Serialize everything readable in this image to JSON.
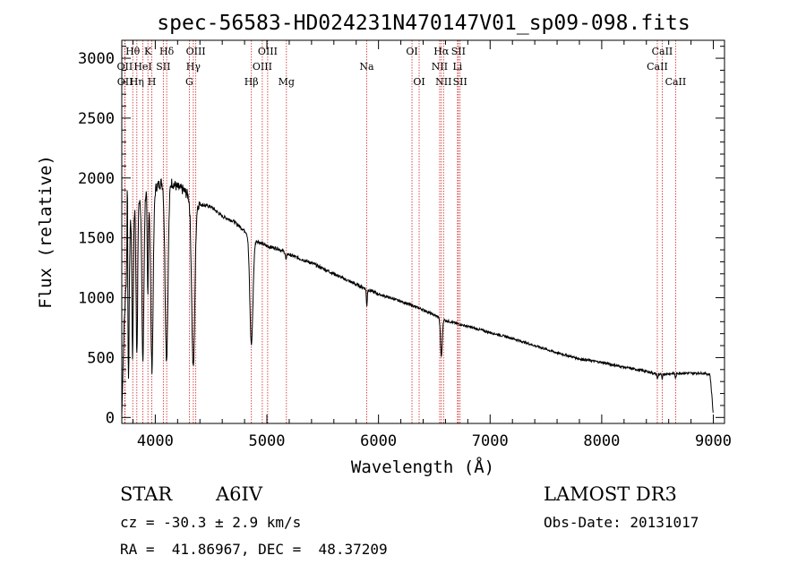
{
  "colors": {
    "spectrum": "#000000",
    "line_marker": "#cc2222",
    "axis": "#000000"
  },
  "chart_data": {
    "type": "line",
    "title": "spec-56583-HD024231N470147V01_sp09-098.fits",
    "xlabel": "Wavelength (Å)",
    "ylabel": "Flux (relative)",
    "xlim": [
      3700,
      9100
    ],
    "ylim": [
      -50,
      3150
    ],
    "xticks": [
      4000,
      5000,
      6000,
      7000,
      8000,
      9000
    ],
    "yticks": [
      0,
      500,
      1000,
      1500,
      2000,
      2500,
      3000
    ],
    "x_minor_step": 200,
    "y_minor_step": 100,
    "series": [
      {
        "name": "spectrum",
        "continuum": [
          [
            3700,
            20
          ],
          [
            3720,
            750
          ],
          [
            3750,
            1350
          ],
          [
            3780,
            1650
          ],
          [
            3830,
            1800
          ],
          [
            3900,
            1880
          ],
          [
            3950,
            1900
          ],
          [
            4000,
            1920
          ],
          [
            4050,
            1960
          ],
          [
            4100,
            1990
          ],
          [
            4150,
            1960
          ],
          [
            4200,
            1920
          ],
          [
            4250,
            1900
          ],
          [
            4300,
            1850
          ],
          [
            4350,
            1800
          ],
          [
            4400,
            1780
          ],
          [
            4500,
            1760
          ],
          [
            4600,
            1680
          ],
          [
            4700,
            1640
          ],
          [
            4800,
            1560
          ],
          [
            4900,
            1480
          ],
          [
            5000,
            1430
          ],
          [
            5100,
            1410
          ],
          [
            5200,
            1360
          ],
          [
            5400,
            1290
          ],
          [
            5600,
            1200
          ],
          [
            5800,
            1110
          ],
          [
            6000,
            1030
          ],
          [
            6200,
            970
          ],
          [
            6400,
            900
          ],
          [
            6600,
            810
          ],
          [
            6800,
            760
          ],
          [
            7000,
            710
          ],
          [
            7200,
            660
          ],
          [
            7400,
            600
          ],
          [
            7600,
            540
          ],
          [
            7800,
            490
          ],
          [
            8000,
            460
          ],
          [
            8200,
            420
          ],
          [
            8400,
            385
          ],
          [
            8500,
            360
          ],
          [
            8700,
            370
          ],
          [
            8900,
            370
          ],
          [
            8970,
            360
          ],
          [
            8990,
            150
          ],
          [
            9000,
            0
          ]
        ],
        "absorption_lines": [
          {
            "center": 3760,
            "depth": 1100,
            "width": 6
          },
          {
            "center": 3797,
            "depth": 1200,
            "width": 6
          },
          {
            "center": 3835,
            "depth": 1300,
            "width": 7
          },
          {
            "center": 3889,
            "depth": 1400,
            "width": 9
          },
          {
            "center": 3933,
            "depth": 900,
            "width": 5
          },
          {
            "center": 3970,
            "depth": 1500,
            "width": 11
          },
          {
            "center": 4101,
            "depth": 1500,
            "width": 13
          },
          {
            "center": 4340,
            "depth": 1400,
            "width": 14
          },
          {
            "center": 4861,
            "depth": 900,
            "width": 14
          },
          {
            "center": 5172,
            "depth": 60,
            "width": 5
          },
          {
            "center": 5895,
            "depth": 140,
            "width": 4
          },
          {
            "center": 6563,
            "depth": 320,
            "width": 8
          },
          {
            "center": 8500,
            "depth": 40,
            "width": 4
          },
          {
            "center": 8542,
            "depth": 50,
            "width": 4
          },
          {
            "center": 8662,
            "depth": 45,
            "width": 4
          }
        ],
        "emission_features": [
          {
            "center": 3750,
            "height": 900,
            "width": 3
          }
        ]
      }
    ],
    "spectral_lines": [
      {
        "label": "Hθ",
        "wavelength": 3798,
        "row": 0
      },
      {
        "label": "OII",
        "wavelength": 3727,
        "row": 1
      },
      {
        "label": "OII",
        "wavelength": 3729,
        "row": 2
      },
      {
        "label": "Hη",
        "wavelength": 3835,
        "row": 2
      },
      {
        "label": "K",
        "wavelength": 3934,
        "row": 0
      },
      {
        "label": "HeI",
        "wavelength": 3889,
        "row": 1
      },
      {
        "label": "H",
        "wavelength": 3969,
        "row": 2
      },
      {
        "label": "Hδ",
        "wavelength": 4102,
        "row": 0
      },
      {
        "label": "SII",
        "wavelength": 4072,
        "row": 1
      },
      {
        "label": "OIII",
        "wavelength": 4363,
        "row": 0
      },
      {
        "label": "Hγ",
        "wavelength": 4341,
        "row": 1
      },
      {
        "label": "G",
        "wavelength": 4305,
        "row": 2
      },
      {
        "label": "Hβ",
        "wavelength": 4861,
        "row": 2
      },
      {
        "label": "OIII",
        "wavelength": 5007,
        "row": 0
      },
      {
        "label": "OIII",
        "wavelength": 4959,
        "row": 1
      },
      {
        "label": "Mg",
        "wavelength": 5175,
        "row": 2
      },
      {
        "label": "Na",
        "wavelength": 5894,
        "row": 1
      },
      {
        "label": "OI",
        "wavelength": 6300,
        "row": 0
      },
      {
        "label": "OI",
        "wavelength": 6364,
        "row": 2
      },
      {
        "label": "Hα",
        "wavelength": 6563,
        "row": 0
      },
      {
        "label": "SII",
        "wavelength": 6716,
        "row": 0
      },
      {
        "label": "NII",
        "wavelength": 6548,
        "row": 1
      },
      {
        "label": "Li",
        "wavelength": 6708,
        "row": 1
      },
      {
        "label": "NII",
        "wavelength": 6583,
        "row": 2
      },
      {
        "label": "SII",
        "wavelength": 6731,
        "row": 2
      },
      {
        "label": "CaII",
        "wavelength": 8542,
        "row": 0
      },
      {
        "label": "CaII",
        "wavelength": 8498,
        "row": 1
      },
      {
        "label": "CaII",
        "wavelength": 8662,
        "row": 2
      }
    ]
  },
  "info": {
    "object_class": "STAR",
    "subclass": "A6IV",
    "survey": "LAMOST DR3",
    "redshift": "cz = -30.3 ± 2.9 km/s",
    "obs_date": "Obs-Date: 20131017",
    "coords": "RA =  41.86967, DEC =  48.37209"
  }
}
